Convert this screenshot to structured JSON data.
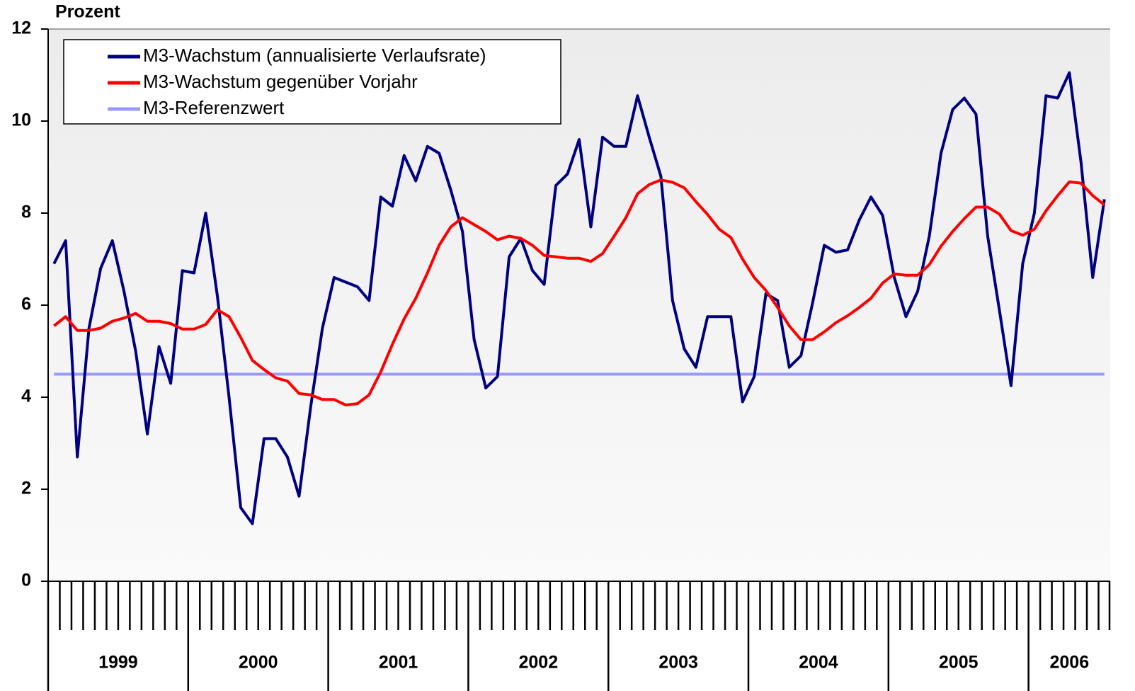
{
  "chart_data": {
    "type": "line",
    "y_label": "Prozent",
    "ylim": [
      0,
      12
    ],
    "yticks": [
      0,
      2,
      4,
      6,
      8,
      10,
      12
    ],
    "years": [
      "1999",
      "2000",
      "2001",
      "2002",
      "2003",
      "2004",
      "2005",
      "2006"
    ],
    "categories": [
      null,
      null,
      null,
      null,
      null,
      null,
      null,
      null,
      null,
      null,
      null,
      null,
      null,
      null,
      null,
      null,
      null,
      null,
      null,
      null,
      null,
      null,
      null,
      null,
      null,
      null,
      null,
      null,
      null,
      null,
      null,
      null,
      null,
      null,
      null,
      null,
      null,
      null,
      null,
      null,
      null,
      null,
      null,
      null,
      null,
      null,
      null,
      null,
      null,
      null,
      null,
      null,
      null,
      null,
      null,
      null,
      null,
      null,
      null,
      null,
      null,
      null,
      null,
      null,
      null,
      null,
      null,
      null,
      null,
      null,
      null,
      null,
      null,
      null,
      null,
      null,
      null,
      null,
      null,
      null,
      null,
      null,
      null,
      null,
      null,
      null,
      null,
      null,
      null,
      null,
      null
    ],
    "series": [
      {
        "name": "M3-Wachstum (annualisierte Verlaufsrate)",
        "color": "#000080",
        "values": [
          6.9,
          7.4,
          2.7,
          5.5,
          6.8,
          7.4,
          6.3,
          5.0,
          3.2,
          5.1,
          4.3,
          6.75,
          6.7,
          8.0,
          6.2,
          4.0,
          1.6,
          1.25,
          3.1,
          3.1,
          2.7,
          1.85,
          3.8,
          5.5,
          6.6,
          6.5,
          6.4,
          6.1,
          8.35,
          8.15,
          9.25,
          8.7,
          9.45,
          9.3,
          8.5,
          7.6,
          5.25,
          4.2,
          4.45,
          7.05,
          7.45,
          6.75,
          6.45,
          8.6,
          8.85,
          9.6,
          7.7,
          9.65,
          9.45,
          9.45,
          10.55,
          9.65,
          8.8,
          6.1,
          5.05,
          4.65,
          5.75,
          5.75,
          5.75,
          3.9,
          4.45,
          6.25,
          6.1,
          4.65,
          4.9,
          6.05,
          7.3,
          7.15,
          7.2,
          7.85,
          8.35,
          7.95,
          6.6,
          5.75,
          6.3,
          7.5,
          9.3,
          10.25,
          10.5,
          10.15,
          7.5,
          5.9,
          4.25,
          6.9,
          8.0,
          10.55,
          10.5,
          11.05,
          9.1,
          6.6,
          8.3
        ]
      },
      {
        "name": "M3-Wachstum gegenüber Vorjahr",
        "color": "#ff0000",
        "values": [
          5.55,
          5.75,
          5.45,
          5.45,
          5.5,
          5.65,
          5.72,
          5.82,
          5.65,
          5.65,
          5.6,
          5.48,
          5.48,
          5.58,
          5.9,
          5.75,
          5.3,
          4.8,
          4.6,
          4.42,
          4.35,
          4.08,
          4.05,
          3.95,
          3.95,
          3.83,
          3.86,
          4.05,
          4.55,
          5.15,
          5.7,
          6.15,
          6.7,
          7.3,
          7.7,
          7.9,
          7.75,
          7.6,
          7.42,
          7.5,
          7.45,
          7.3,
          7.08,
          7.05,
          7.02,
          7.02,
          6.95,
          7.12,
          7.5,
          7.9,
          8.42,
          8.62,
          8.72,
          8.67,
          8.55,
          8.25,
          7.97,
          7.65,
          7.47,
          7.0,
          6.6,
          6.32,
          5.95,
          5.55,
          5.25,
          5.25,
          5.42,
          5.62,
          5.77,
          5.95,
          6.15,
          6.48,
          6.68,
          6.65,
          6.65,
          6.88,
          7.28,
          7.6,
          7.88,
          8.13,
          8.13,
          7.98,
          7.62,
          7.52,
          7.65,
          8.05,
          8.38,
          8.68,
          8.65,
          8.38,
          8.18
        ]
      },
      {
        "name": "M3-Referenzwert",
        "color": "#9999ff",
        "values": [
          4.5,
          4.5,
          4.5,
          4.5,
          4.5,
          4.5,
          4.5,
          4.5,
          4.5,
          4.5,
          4.5,
          4.5,
          4.5,
          4.5,
          4.5,
          4.5,
          4.5,
          4.5,
          4.5,
          4.5,
          4.5,
          4.5,
          4.5,
          4.5,
          4.5,
          4.5,
          4.5,
          4.5,
          4.5,
          4.5,
          4.5,
          4.5,
          4.5,
          4.5,
          4.5,
          4.5,
          4.5,
          4.5,
          4.5,
          4.5,
          4.5,
          4.5,
          4.5,
          4.5,
          4.5,
          4.5,
          4.5,
          4.5,
          4.5,
          4.5,
          4.5,
          4.5,
          4.5,
          4.5,
          4.5,
          4.5,
          4.5,
          4.5,
          4.5,
          4.5,
          4.5,
          4.5,
          4.5,
          4.5,
          4.5,
          4.5,
          4.5,
          4.5,
          4.5,
          4.5,
          4.5,
          4.5,
          4.5,
          4.5,
          4.5,
          4.5,
          4.5,
          4.5,
          4.5,
          4.5,
          4.5,
          4.5,
          4.5,
          4.5,
          4.5,
          4.5,
          4.5,
          4.5,
          4.5,
          4.5,
          4.5
        ]
      }
    ]
  }
}
